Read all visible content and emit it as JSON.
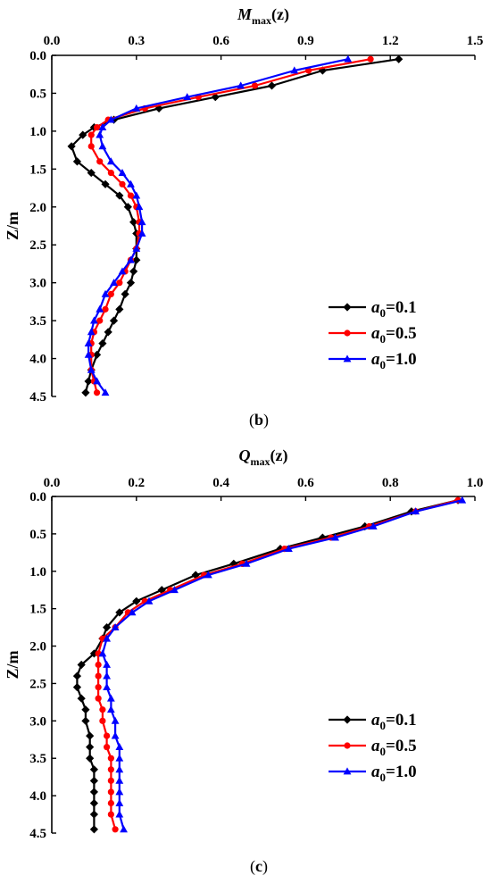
{
  "panels": [
    {
      "title": {
        "symbol": "M",
        "subscript": "max",
        "suffix": "(z)"
      },
      "caption": {
        "open": "(",
        "letter": "b",
        "close": ")"
      },
      "legend_labels": [
        {
          "symbol": "a",
          "subscript": "0",
          "value": "=0.1"
        },
        {
          "symbol": "a",
          "subscript": "0",
          "value": "=0.5"
        },
        {
          "symbol": "a",
          "subscript": "0",
          "value": "=1.0"
        }
      ]
    },
    {
      "title": {
        "symbol": "Q",
        "subscript": "max",
        "suffix": "(z)"
      },
      "caption": {
        "open": "(",
        "letter": "c",
        "close": ")"
      },
      "legend_labels": [
        {
          "symbol": "a",
          "subscript": "0",
          "value": "=0.1"
        },
        {
          "symbol": "a",
          "subscript": "0",
          "value": "=0.5"
        },
        {
          "symbol": "a",
          "subscript": "0",
          "value": "=1.0"
        }
      ]
    }
  ],
  "chart_data": [
    {
      "type": "line",
      "title": "Mmax(z)",
      "xlabel": "Mmax(z)",
      "ylabel": "Z/m",
      "x_axis_position": "top",
      "y_axis_inverted": true,
      "xlim": [
        0,
        1.5
      ],
      "ylim": [
        0,
        4.5
      ],
      "xticks": [
        "0.0",
        "0.3",
        "0.6",
        "0.9",
        "1.2",
        "1.5"
      ],
      "yticks": [
        "0.0",
        "0.5",
        "1.0",
        "1.5",
        "2.0",
        "2.5",
        "3.0",
        "3.5",
        "4.0",
        "4.5"
      ],
      "grid": false,
      "legend_position": "bottom-right",
      "z": [
        0.05,
        0.2,
        0.4,
        0.55,
        0.7,
        0.85,
        0.95,
        1.05,
        1.2,
        1.4,
        1.55,
        1.7,
        1.85,
        2.0,
        2.2,
        2.35,
        2.55,
        2.7,
        2.85,
        3.0,
        3.15,
        3.35,
        3.5,
        3.65,
        3.8,
        3.95,
        4.15,
        4.3,
        4.45
      ],
      "series": [
        {
          "name": "a0=0.1",
          "color": "#000000",
          "marker": "diamond",
          "x": [
            1.23,
            0.96,
            0.78,
            0.58,
            0.38,
            0.22,
            0.15,
            0.11,
            0.07,
            0.09,
            0.14,
            0.19,
            0.24,
            0.27,
            0.29,
            0.3,
            0.3,
            0.3,
            0.29,
            0.28,
            0.26,
            0.24,
            0.22,
            0.2,
            0.18,
            0.16,
            0.14,
            0.13,
            0.12
          ]
        },
        {
          "name": "a0=0.5",
          "color": "#ff0000",
          "marker": "circle",
          "x": [
            1.13,
            0.91,
            0.72,
            0.52,
            0.33,
            0.2,
            0.16,
            0.14,
            0.14,
            0.17,
            0.21,
            0.25,
            0.28,
            0.3,
            0.31,
            0.31,
            0.3,
            0.28,
            0.26,
            0.24,
            0.21,
            0.19,
            0.17,
            0.15,
            0.14,
            0.14,
            0.14,
            0.15,
            0.16
          ]
        },
        {
          "name": "a0=1.0",
          "color": "#0000ff",
          "marker": "triangle",
          "x": [
            1.05,
            0.86,
            0.67,
            0.48,
            0.3,
            0.21,
            0.18,
            0.17,
            0.18,
            0.21,
            0.25,
            0.28,
            0.3,
            0.31,
            0.32,
            0.32,
            0.3,
            0.28,
            0.25,
            0.22,
            0.19,
            0.17,
            0.15,
            0.14,
            0.13,
            0.13,
            0.14,
            0.16,
            0.19
          ]
        }
      ]
    },
    {
      "type": "line",
      "title": "Qmax(z)",
      "xlabel": "Qmax(z)",
      "ylabel": "Z/m",
      "x_axis_position": "top",
      "y_axis_inverted": true,
      "xlim": [
        0,
        1.0
      ],
      "ylim": [
        0,
        4.5
      ],
      "xticks": [
        "0.0",
        "0.2",
        "0.4",
        "0.6",
        "0.8",
        "1.0"
      ],
      "yticks": [
        "0.0",
        "0.5",
        "1.0",
        "1.5",
        "2.0",
        "2.5",
        "3.0",
        "3.5",
        "4.0",
        "4.5"
      ],
      "grid": false,
      "legend_position": "bottom-right",
      "z": [
        0.05,
        0.2,
        0.4,
        0.55,
        0.7,
        0.9,
        1.05,
        1.25,
        1.4,
        1.55,
        1.75,
        1.9,
        2.1,
        2.25,
        2.4,
        2.55,
        2.7,
        2.85,
        3.0,
        3.2,
        3.35,
        3.5,
        3.65,
        3.8,
        3.95,
        4.1,
        4.25,
        4.45
      ],
      "series": [
        {
          "name": "a0=0.1",
          "color": "#000000",
          "marker": "diamond",
          "x": [
            0.96,
            0.85,
            0.74,
            0.64,
            0.54,
            0.43,
            0.34,
            0.26,
            0.2,
            0.16,
            0.13,
            0.12,
            0.1,
            0.07,
            0.06,
            0.06,
            0.07,
            0.08,
            0.08,
            0.09,
            0.09,
            0.09,
            0.1,
            0.1,
            0.1,
            0.1,
            0.1,
            0.1
          ]
        },
        {
          "name": "a0=0.5",
          "color": "#ff0000",
          "marker": "circle",
          "x": [
            0.96,
            0.86,
            0.75,
            0.66,
            0.55,
            0.45,
            0.36,
            0.28,
            0.22,
            0.18,
            0.15,
            0.12,
            0.11,
            0.11,
            0.11,
            0.11,
            0.11,
            0.12,
            0.12,
            0.13,
            0.13,
            0.14,
            0.14,
            0.14,
            0.14,
            0.14,
            0.14,
            0.15
          ]
        },
        {
          "name": "a0=1.0",
          "color": "#0000ff",
          "marker": "triangle",
          "x": [
            0.97,
            0.86,
            0.76,
            0.67,
            0.56,
            0.46,
            0.37,
            0.29,
            0.23,
            0.19,
            0.15,
            0.13,
            0.12,
            0.13,
            0.13,
            0.13,
            0.14,
            0.14,
            0.15,
            0.15,
            0.16,
            0.16,
            0.16,
            0.16,
            0.16,
            0.16,
            0.16,
            0.17
          ]
        }
      ]
    }
  ]
}
